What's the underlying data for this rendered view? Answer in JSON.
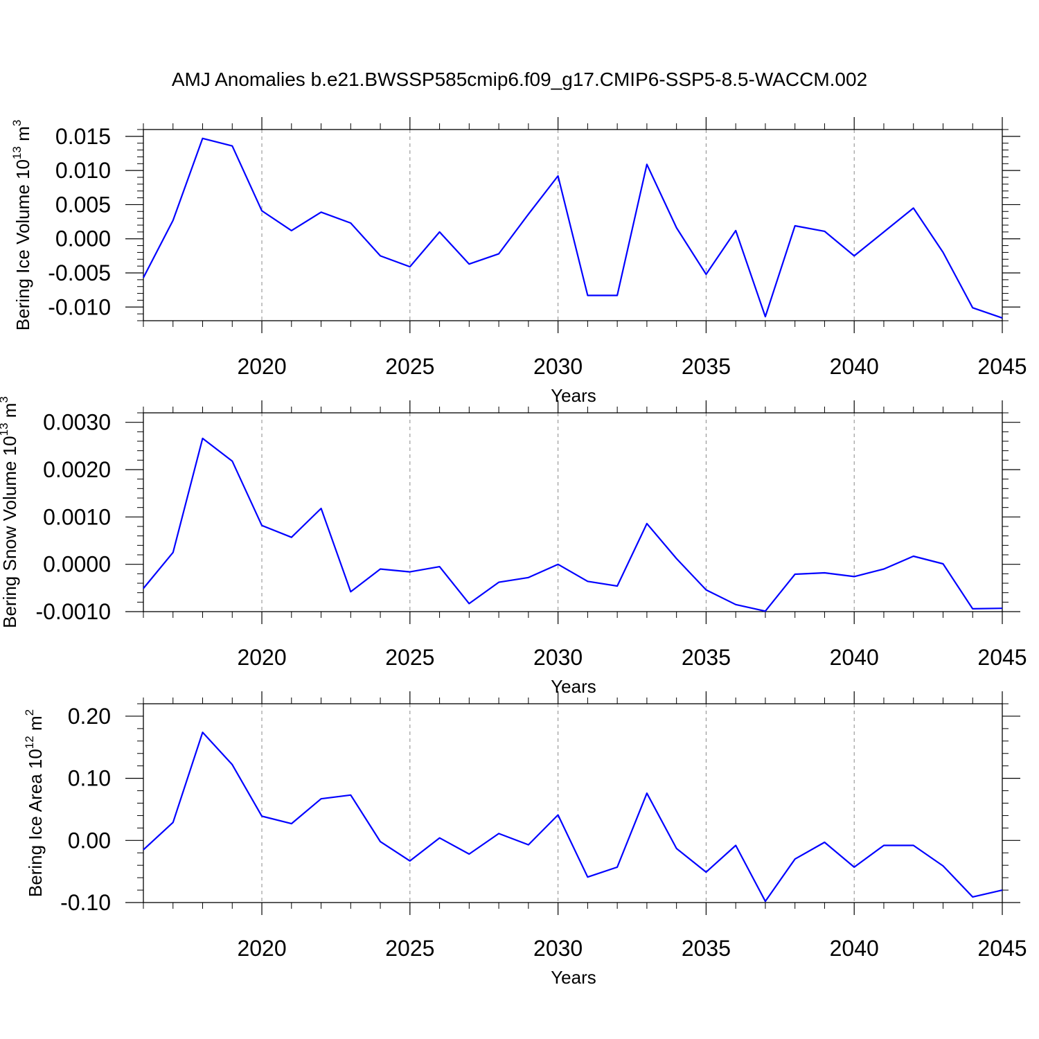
{
  "title": "AMJ Anomalies b.e21.BWSSP585cmip6.f09_g17.CMIP6-SSP5-8.5-WACCM.002",
  "colors": {
    "line": "#0000ff",
    "axis": "#000000",
    "grid": "#888888"
  },
  "chart_data": [
    {
      "type": "line",
      "ylabel": "Bering Ice Volume",
      "ylabel_unit": "10",
      "ylabel_exp": "13",
      "ylabel_unit_tail": " m",
      "ylabel_unit_exp": "3",
      "xlabel": "Years",
      "xlim": [
        2016,
        2045
      ],
      "ylim": [
        -0.012,
        0.016
      ],
      "x_ticks": [
        2020,
        2025,
        2030,
        2035,
        2040,
        2045
      ],
      "x_tick_labels": [
        "2020",
        "2025",
        "2030",
        "2035",
        "2040",
        "2045"
      ],
      "y_ticks": [
        -0.01,
        -0.005,
        0.0,
        0.005,
        0.01,
        0.015
      ],
      "y_tick_labels": [
        "-0.010",
        "-0.005",
        "0.000",
        "0.005",
        "0.010",
        "0.015"
      ],
      "y_minor_step": 0.001,
      "grid": "vertical dashed at major x ticks",
      "series": [
        {
          "x": [
            2016,
            2017,
            2018,
            2019,
            2020,
            2021,
            2022,
            2023,
            2024,
            2025,
            2026,
            2027,
            2028,
            2029,
            2030,
            2031,
            2032,
            2033,
            2034,
            2035,
            2036,
            2037,
            2038,
            2039,
            2040,
            2041,
            2042,
            2043,
            2044,
            2045
          ],
          "values": [
            -0.0057,
            0.0027,
            0.0147,
            0.0136,
            0.0041,
            0.0012,
            0.0039,
            0.0023,
            -0.0025,
            -0.0041,
            0.001,
            -0.0037,
            -0.0022,
            0.0036,
            0.0092,
            -0.0083,
            -0.0083,
            0.0109,
            0.0016,
            -0.0052,
            0.0012,
            -0.0114,
            0.0019,
            0.0011,
            -0.0025,
            0.001,
            0.0045,
            -0.002,
            -0.0101,
            -0.0116
          ]
        }
      ]
    },
    {
      "type": "line",
      "ylabel": "Bering Snow Volume",
      "ylabel_unit": "10",
      "ylabel_exp": "13",
      "ylabel_unit_tail": " m",
      "ylabel_unit_exp": "3",
      "xlabel": "Years",
      "xlim": [
        2016,
        2045
      ],
      "ylim": [
        -0.001,
        0.0032
      ],
      "x_ticks": [
        2020,
        2025,
        2030,
        2035,
        2040,
        2045
      ],
      "x_tick_labels": [
        "2020",
        "2025",
        "2030",
        "2035",
        "2040",
        "2045"
      ],
      "y_ticks": [
        -0.001,
        0.0,
        0.001,
        0.002,
        0.003
      ],
      "y_tick_labels": [
        "-0.0010",
        "0.0000",
        "0.0010",
        "0.0020",
        "0.0030"
      ],
      "y_minor_step": 0.0002,
      "grid": "vertical dashed at major x ticks",
      "series": [
        {
          "x": [
            2016,
            2017,
            2018,
            2019,
            2020,
            2021,
            2022,
            2023,
            2024,
            2025,
            2026,
            2027,
            2028,
            2029,
            2030,
            2031,
            2032,
            2033,
            2034,
            2035,
            2036,
            2037,
            2038,
            2039,
            2040,
            2041,
            2042,
            2043,
            2044,
            2045
          ],
          "values": [
            -0.00051,
            0.00025,
            0.00266,
            0.00218,
            0.00082,
            0.00057,
            0.00118,
            -0.00058,
            -0.0001,
            -0.00016,
            -5e-05,
            -0.00083,
            -0.00038,
            -0.00028,
            0.0,
            -0.00036,
            -0.00046,
            0.00086,
            0.00012,
            -0.00054,
            -0.00085,
            -0.00099,
            -0.00021,
            -0.00018,
            -0.00026,
            -0.0001,
            0.00017,
            1e-05,
            -0.00094,
            -0.00093
          ]
        }
      ]
    },
    {
      "type": "line",
      "ylabel": "Bering Ice Area",
      "ylabel_unit": "10",
      "ylabel_exp": "12",
      "ylabel_unit_tail": " m",
      "ylabel_unit_exp": "2",
      "xlabel": "Years",
      "xlim": [
        2016,
        2045
      ],
      "ylim": [
        -0.1,
        0.22
      ],
      "x_ticks": [
        2020,
        2025,
        2030,
        2035,
        2040,
        2045
      ],
      "x_tick_labels": [
        "2020",
        "2025",
        "2030",
        "2035",
        "2040",
        "2045"
      ],
      "y_ticks": [
        -0.1,
        0.0,
        0.1,
        0.2
      ],
      "y_tick_labels": [
        "-0.10",
        "0.00",
        "0.10",
        "0.20"
      ],
      "y_minor_step": 0.02,
      "grid": "vertical dashed at major x ticks",
      "series": [
        {
          "x": [
            2016,
            2017,
            2018,
            2019,
            2020,
            2021,
            2022,
            2023,
            2024,
            2025,
            2026,
            2027,
            2028,
            2029,
            2030,
            2031,
            2032,
            2033,
            2034,
            2035,
            2036,
            2037,
            2038,
            2039,
            2040,
            2041,
            2042,
            2043,
            2044,
            2045
          ],
          "values": [
            -0.015,
            0.029,
            0.174,
            0.122,
            0.039,
            0.027,
            0.067,
            0.073,
            -0.002,
            -0.033,
            0.004,
            -0.022,
            0.011,
            -0.007,
            0.041,
            -0.059,
            -0.043,
            0.076,
            -0.013,
            -0.051,
            -0.008,
            -0.098,
            -0.03,
            -0.003,
            -0.043,
            -0.008,
            -0.008,
            -0.041,
            -0.091,
            -0.08
          ]
        }
      ]
    }
  ]
}
